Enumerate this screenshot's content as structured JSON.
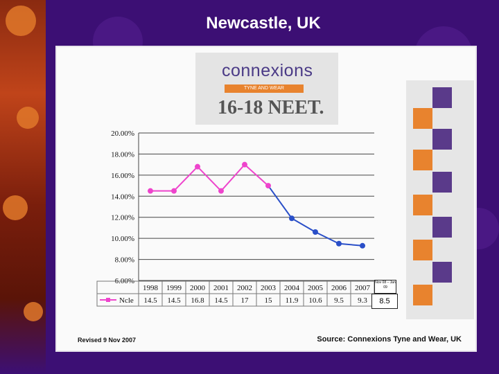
{
  "title": "Newcastle, UK",
  "logo": {
    "brand": "connexions",
    "tagline": "TYNE AND WEAR",
    "heading": "16-18 NEET."
  },
  "footer": {
    "revised": "Revised 9 Nov 2007",
    "source": "Source: Connexions Tyne and Wear, UK"
  },
  "latest": {
    "period": "Nov 08 – Jan 09",
    "value": "8.5"
  },
  "colors": {
    "background": "#3c0f74",
    "line": "#ee44cc",
    "line_later": "#2a4fc8",
    "orange": "#e8832e",
    "purple": "#5a3a8a"
  },
  "chart_data": {
    "type": "line",
    "categories": [
      "1998",
      "1999",
      "2000",
      "2001",
      "2002",
      "2003",
      "2004",
      "2005",
      "2006",
      "2007"
    ],
    "series": [
      {
        "name": "Ncle",
        "values": [
          14.5,
          14.5,
          16.8,
          14.5,
          17,
          15,
          11.9,
          10.6,
          9.5,
          9.3
        ],
        "value_labels": [
          "14.5",
          "14.5",
          "16.8",
          "14.5",
          "17",
          "15",
          "11.9",
          "10.6",
          "9.5",
          "9.3"
        ]
      }
    ],
    "yticks": [
      "20.00%",
      "18.00%",
      "16.00%",
      "14.00%",
      "12.00%",
      "10.00%",
      "8.00%",
      "6.00%"
    ],
    "ylim": [
      6,
      20
    ],
    "grid": true,
    "legend_position": "bottom-left (data table)"
  }
}
